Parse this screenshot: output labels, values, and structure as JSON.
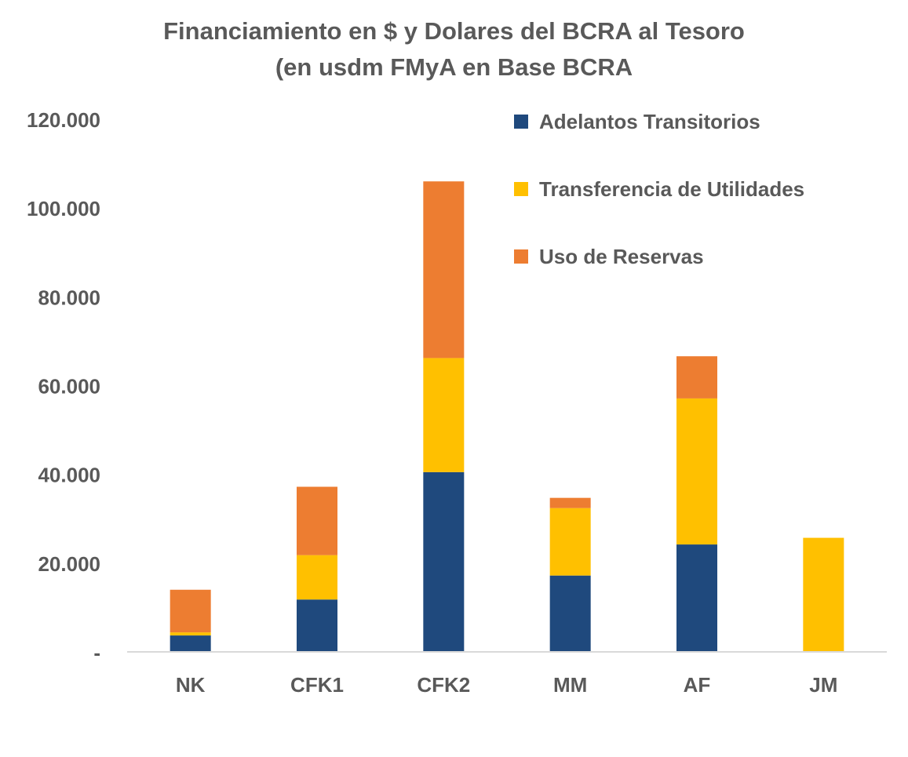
{
  "chart_data": {
    "type": "bar",
    "stacked": true,
    "title": "Financiamiento en $ y Dolares del BCRA al Tesoro",
    "subtitle": "(en usdm FMyA en Base BCRA",
    "categories": [
      "NK",
      "CFK1",
      "CFK2",
      "MM",
      "AF",
      "JM"
    ],
    "series": [
      {
        "name": "Adelantos Transitorios",
        "color": "#1F497D",
        "values": [
          3700,
          11800,
          40500,
          17200,
          24200,
          0
        ]
      },
      {
        "name": "Transferencia de Utilidades",
        "color": "#FFC000",
        "values": [
          700,
          10000,
          25700,
          15200,
          32900,
          25700
        ]
      },
      {
        "name": "Uso de Reservas",
        "color": "#ED7D31",
        "values": [
          9600,
          15400,
          39800,
          2300,
          9500,
          0
        ]
      }
    ],
    "ylim": [
      0,
      120000
    ],
    "yticks": [
      0,
      20000,
      40000,
      60000,
      80000,
      100000,
      120000
    ],
    "ytick_labels": [
      "-",
      "20.000",
      "40.000",
      "60.000",
      "80.000",
      "100.000",
      "120.000"
    ],
    "xlabel": "",
    "ylabel": "",
    "grid": false,
    "legend_position": "top-right"
  }
}
